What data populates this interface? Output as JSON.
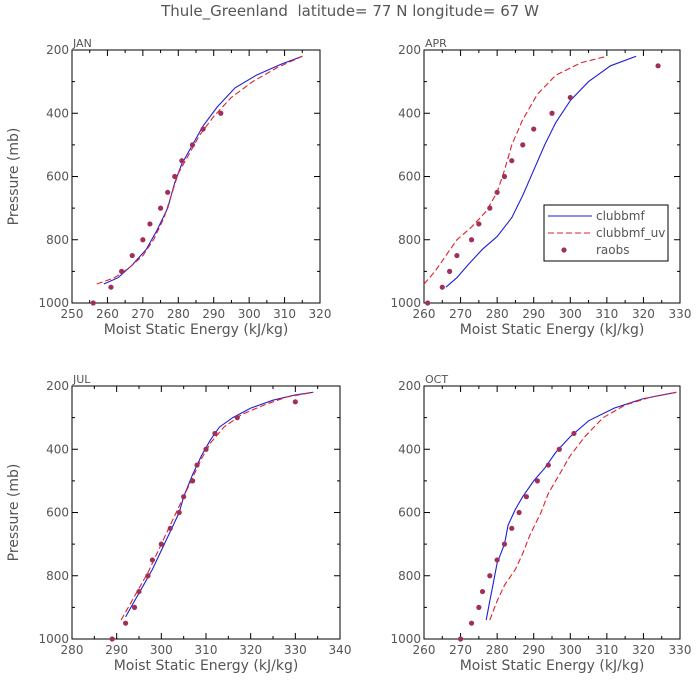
{
  "title": "Thule_Greenland  latitude= 77 N longitude= 67 W",
  "colors": {
    "clubbmf": "#1f1fd6",
    "clubbmf_uv": "#e0202a",
    "raobs": "#a0305a",
    "axis": "#000000",
    "text": "#555555"
  },
  "chart_data": [
    {
      "type": "line",
      "panel_label": "JAN",
      "xlabel": "Moist Static Energy (kJ/kg)",
      "ylabel": "Pressure (mb)",
      "xlim": [
        250,
        320
      ],
      "ylim": [
        1000,
        200
      ],
      "xticks": [
        250,
        260,
        270,
        280,
        290,
        300,
        310,
        320
      ],
      "yticks": [
        200,
        400,
        600,
        800,
        1000
      ],
      "series": [
        {
          "name": "clubbmf",
          "style": "solid",
          "points": [
            [
              259,
              940
            ],
            [
              263,
              920
            ],
            [
              267,
              880
            ],
            [
              271,
              830
            ],
            [
              274,
              770
            ],
            [
              277,
              700
            ],
            [
              279,
              620
            ],
            [
              281,
              560
            ],
            [
              284,
              500
            ],
            [
              287,
              440
            ],
            [
              291,
              380
            ],
            [
              296,
              320
            ],
            [
              302,
              280
            ],
            [
              309,
              245
            ],
            [
              315,
              220
            ]
          ]
        },
        {
          "name": "clubbmf_uv",
          "style": "dashed",
          "points": [
            [
              257,
              940
            ],
            [
              262,
              920
            ],
            [
              266,
              890
            ],
            [
              270,
              850
            ],
            [
              273,
              800
            ],
            [
              276,
              730
            ],
            [
              278,
              660
            ],
            [
              280,
              590
            ],
            [
              283,
              530
            ],
            [
              286,
              470
            ],
            [
              290,
              410
            ],
            [
              295,
              350
            ],
            [
              301,
              300
            ],
            [
              308,
              255
            ],
            [
              315,
              220
            ]
          ]
        },
        {
          "name": "raobs",
          "style": "markers",
          "points": [
            [
              256,
              1000
            ],
            [
              261,
              950
            ],
            [
              264,
              900
            ],
            [
              267,
              850
            ],
            [
              270,
              800
            ],
            [
              272,
              750
            ],
            [
              275,
              700
            ],
            [
              277,
              650
            ],
            [
              279,
              600
            ],
            [
              281,
              550
            ],
            [
              284,
              500
            ],
            [
              287,
              450
            ],
            [
              292,
              400
            ]
          ]
        }
      ]
    },
    {
      "type": "line",
      "panel_label": "APR",
      "xlabel": "Moist Static Energy (kJ/kg)",
      "ylabel": "",
      "xlim": [
        260,
        330
      ],
      "ylim": [
        1000,
        200
      ],
      "xticks": [
        260,
        270,
        280,
        290,
        300,
        310,
        320,
        330
      ],
      "yticks": [
        200,
        400,
        600,
        800,
        1000
      ],
      "legend": {
        "position": "right-middle",
        "entries": [
          "clubbmf",
          "clubbmf_uv",
          "raobs"
        ]
      },
      "series": [
        {
          "name": "clubbmf",
          "style": "solid",
          "points": [
            [
              266,
              950
            ],
            [
              269,
              920
            ],
            [
              272,
              880
            ],
            [
              276,
              830
            ],
            [
              280,
              790
            ],
            [
              284,
              730
            ],
            [
              287,
              660
            ],
            [
              290,
              580
            ],
            [
              293,
              500
            ],
            [
              296,
              430
            ],
            [
              300,
              360
            ],
            [
              305,
              300
            ],
            [
              311,
              250
            ],
            [
              318,
              220
            ]
          ]
        },
        {
          "name": "clubbmf_uv",
          "style": "dashed",
          "points": [
            [
              260,
              940
            ],
            [
              263,
              900
            ],
            [
              266,
              850
            ],
            [
              269,
              800
            ],
            [
              273,
              760
            ],
            [
              277,
              710
            ],
            [
              280,
              650
            ],
            [
              282,
              580
            ],
            [
              284,
              500
            ],
            [
              287,
              420
            ],
            [
              291,
              340
            ],
            [
              296,
              280
            ],
            [
              303,
              240
            ],
            [
              310,
              220
            ]
          ]
        },
        {
          "name": "raobs",
          "style": "markers",
          "points": [
            [
              261,
              1000
            ],
            [
              265,
              950
            ],
            [
              267,
              900
            ],
            [
              269,
              850
            ],
            [
              273,
              800
            ],
            [
              275,
              750
            ],
            [
              278,
              700
            ],
            [
              280,
              650
            ],
            [
              282,
              600
            ],
            [
              284,
              550
            ],
            [
              287,
              500
            ],
            [
              290,
              450
            ],
            [
              295,
              400
            ],
            [
              300,
              350
            ],
            [
              324,
              250
            ]
          ]
        }
      ]
    },
    {
      "type": "line",
      "panel_label": "JUL",
      "xlabel": "Moist Static Energy (kJ/kg)",
      "ylabel": "Pressure (mb)",
      "xlim": [
        280,
        340
      ],
      "ylim": [
        1000,
        200
      ],
      "xticks": [
        280,
        290,
        300,
        310,
        320,
        330,
        340
      ],
      "yticks": [
        200,
        400,
        600,
        800,
        1000
      ],
      "series": [
        {
          "name": "clubbmf",
          "style": "solid",
          "points": [
            [
              292,
              930
            ],
            [
              294,
              880
            ],
            [
              296,
              830
            ],
            [
              298,
              780
            ],
            [
              300,
              720
            ],
            [
              302,
              660
            ],
            [
              304,
              600
            ],
            [
              305,
              550
            ],
            [
              307,
              480
            ],
            [
              309,
              420
            ],
            [
              311,
              370
            ],
            [
              313,
              330
            ],
            [
              316,
              300
            ],
            [
              320,
              270
            ],
            [
              325,
              245
            ],
            [
              330,
              228
            ],
            [
              334,
              220
            ]
          ]
        },
        {
          "name": "clubbmf_uv",
          "style": "dashed",
          "points": [
            [
              291,
              940
            ],
            [
              293,
              890
            ],
            [
              295,
              840
            ],
            [
              297,
              790
            ],
            [
              299,
              730
            ],
            [
              301,
              670
            ],
            [
              303,
              610
            ],
            [
              305,
              550
            ],
            [
              307,
              490
            ],
            [
              309,
              430
            ],
            [
              311,
              380
            ],
            [
              314,
              330
            ],
            [
              318,
              290
            ],
            [
              323,
              260
            ],
            [
              328,
              235
            ],
            [
              334,
              220
            ]
          ]
        },
        {
          "name": "raobs",
          "style": "markers",
          "points": [
            [
              289,
              1000
            ],
            [
              292,
              950
            ],
            [
              294,
              900
            ],
            [
              295,
              850
            ],
            [
              297,
              800
            ],
            [
              298,
              750
            ],
            [
              300,
              700
            ],
            [
              302,
              650
            ],
            [
              304,
              600
            ],
            [
              305,
              550
            ],
            [
              307,
              500
            ],
            [
              308,
              450
            ],
            [
              310,
              400
            ],
            [
              312,
              350
            ],
            [
              317,
              300
            ],
            [
              330,
              250
            ]
          ]
        }
      ]
    },
    {
      "type": "line",
      "panel_label": "OCT",
      "xlabel": "Moist Static Energy (kJ/kg)",
      "ylabel": "",
      "xlim": [
        260,
        330
      ],
      "ylim": [
        1000,
        200
      ],
      "xticks": [
        260,
        270,
        280,
        290,
        300,
        310,
        320,
        330
      ],
      "yticks": [
        200,
        400,
        600,
        800,
        1000
      ],
      "series": [
        {
          "name": "clubbmf",
          "style": "solid",
          "points": [
            [
              277,
              940
            ],
            [
              278,
              880
            ],
            [
              279,
              820
            ],
            [
              280,
              760
            ],
            [
              282,
              700
            ],
            [
              283,
              640
            ],
            [
              285,
              590
            ],
            [
              287,
              550
            ],
            [
              290,
              500
            ],
            [
              293,
              460
            ],
            [
              296,
              410
            ],
            [
              300,
              360
            ],
            [
              305,
              310
            ],
            [
              312,
              270
            ],
            [
              320,
              240
            ],
            [
              329,
              220
            ]
          ]
        },
        {
          "name": "clubbmf_uv",
          "style": "dashed",
          "points": [
            [
              278,
              940
            ],
            [
              280,
              880
            ],
            [
              282,
              830
            ],
            [
              285,
              780
            ],
            [
              287,
              730
            ],
            [
              289,
              670
            ],
            [
              292,
              600
            ],
            [
              294,
              540
            ],
            [
              297,
              480
            ],
            [
              300,
              420
            ],
            [
              304,
              360
            ],
            [
              309,
              300
            ],
            [
              315,
              260
            ],
            [
              322,
              235
            ],
            [
              329,
              220
            ]
          ]
        },
        {
          "name": "raobs",
          "style": "markers",
          "points": [
            [
              270,
              1000
            ],
            [
              273,
              950
            ],
            [
              275,
              900
            ],
            [
              276,
              850
            ],
            [
              278,
              800
            ],
            [
              280,
              750
            ],
            [
              282,
              700
            ],
            [
              284,
              650
            ],
            [
              286,
              600
            ],
            [
              288,
              550
            ],
            [
              291,
              500
            ],
            [
              294,
              450
            ],
            [
              297,
              400
            ],
            [
              301,
              350
            ]
          ]
        }
      ]
    }
  ]
}
